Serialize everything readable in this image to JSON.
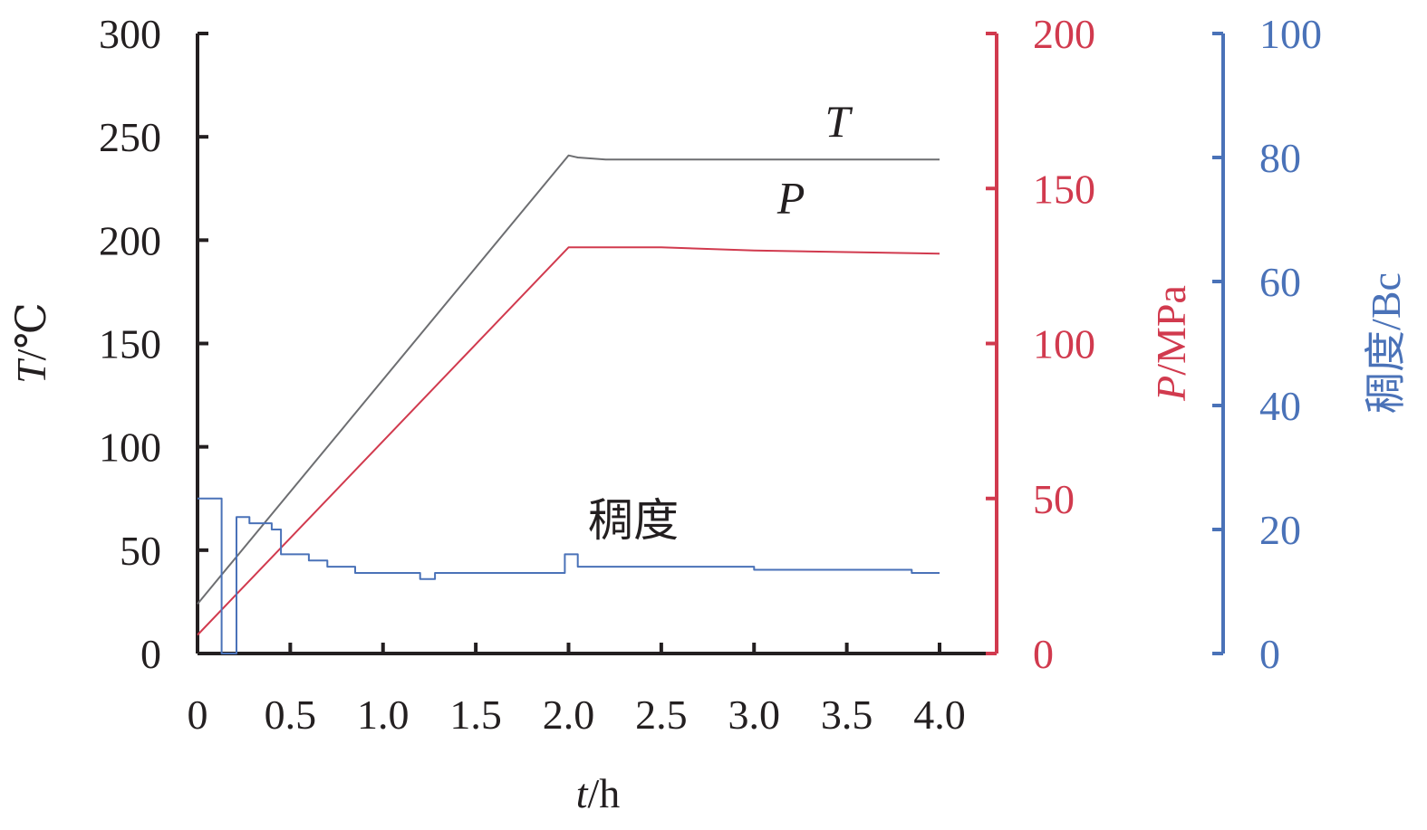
{
  "chart_data": {
    "type": "line",
    "x_axis": {
      "label_var": "t",
      "label_unit": "/h",
      "range": [
        0,
        4.0
      ],
      "ticks": [
        0,
        0.5,
        1.0,
        1.5,
        2.0,
        2.5,
        3.0,
        3.5,
        4.0
      ],
      "tick_labels": [
        "0",
        "0.5",
        "1.0",
        "1.5",
        "2.0",
        "2.5",
        "3.0",
        "3.5",
        "4.0"
      ]
    },
    "y_axes": [
      {
        "id": "T",
        "label_var": "T",
        "label_unit": "/℃",
        "range": [
          0,
          300
        ],
        "ticks": [
          0,
          50,
          100,
          150,
          200,
          250,
          300
        ],
        "color": "#231f20"
      },
      {
        "id": "P",
        "label_var": "P",
        "label_unit": "/MPa",
        "range": [
          0,
          200
        ],
        "ticks": [
          0,
          50,
          100,
          150,
          200
        ],
        "color": "#d13a4e"
      },
      {
        "id": "C",
        "label_var": "",
        "label_unit": "稠度/Bc",
        "range": [
          0,
          100
        ],
        "ticks": [
          0,
          20,
          40,
          60,
          80,
          100
        ],
        "color": "#4a72b8"
      }
    ],
    "series": [
      {
        "name": "T",
        "axis": "T",
        "color": "#6d6e71",
        "points": [
          [
            0,
            24
          ],
          [
            2.0,
            241
          ],
          [
            2.05,
            240
          ],
          [
            2.2,
            239
          ],
          [
            4.0,
            239
          ]
        ],
        "label_at": [
          3.45,
          250
        ]
      },
      {
        "name": "P",
        "axis": "P",
        "color": "#d13a4e",
        "points": [
          [
            0,
            6
          ],
          [
            2.0,
            131
          ],
          [
            2.5,
            131
          ],
          [
            3.0,
            130
          ],
          [
            4.0,
            129
          ]
        ],
        "label_at": [
          3.2,
          142
        ]
      },
      {
        "name": "稠度",
        "axis": "C",
        "color": "#4a72b8",
        "points": [
          [
            0,
            25
          ],
          [
            0.12,
            25
          ],
          [
            0.13,
            0
          ],
          [
            0.2,
            0
          ],
          [
            0.21,
            22
          ],
          [
            0.28,
            21
          ],
          [
            0.4,
            20
          ],
          [
            0.45,
            16
          ],
          [
            0.6,
            15
          ],
          [
            0.7,
            14
          ],
          [
            0.85,
            13
          ],
          [
            1.2,
            12
          ],
          [
            1.28,
            13
          ],
          [
            1.95,
            13
          ],
          [
            1.98,
            16
          ],
          [
            2.05,
            14
          ],
          [
            3.0,
            13.5
          ],
          [
            3.5,
            13.5
          ],
          [
            3.8,
            13.5
          ],
          [
            3.85,
            13
          ],
          [
            4.0,
            13
          ]
        ],
        "label_at": [
          2.35,
          19
        ]
      }
    ]
  }
}
